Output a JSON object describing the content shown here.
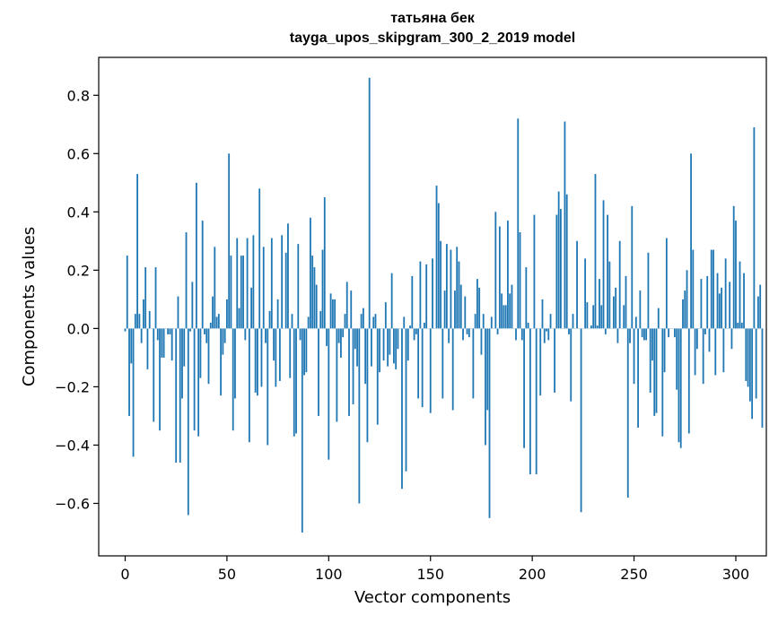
{
  "chart_data": {
    "type": "bar",
    "title": "татьяна бек",
    "subtitle": "tayga_upos_skipgram_300_2_2019 model",
    "xlabel": "Vector components",
    "ylabel": "Components values",
    "xlim": [
      -13,
      315
    ],
    "ylim": [
      -0.78,
      0.93
    ],
    "xticks": [
      0,
      50,
      100,
      150,
      200,
      250,
      300
    ],
    "xtick_labels": [
      "0",
      "50",
      "100",
      "150",
      "200",
      "250",
      "300"
    ],
    "yticks": [
      -0.6,
      -0.4,
      -0.2,
      0.0,
      0.2,
      0.4,
      0.6,
      0.8
    ],
    "ytick_labels": [
      "−0.6",
      "−0.4",
      "−0.2",
      "0.0",
      "0.2",
      "0.4",
      "0.6",
      "0.8"
    ],
    "grid": false,
    "bar_color": "#1f77b4",
    "series": [
      {
        "values": [
          -0.01,
          0.25,
          -0.3,
          -0.12,
          -0.44,
          0.05,
          0.53,
          0.05,
          -0.05,
          0.1,
          0.21,
          -0.14,
          0.06,
          0.0,
          -0.32,
          0.21,
          -0.04,
          -0.35,
          -0.1,
          -0.1,
          0.0,
          -0.02,
          -0.02,
          -0.11,
          0.0,
          -0.46,
          0.11,
          -0.46,
          -0.24,
          -0.13,
          0.33,
          -0.64,
          -0.01,
          0.16,
          -0.35,
          0.5,
          -0.37,
          -0.17,
          0.37,
          -0.02,
          -0.05,
          -0.19,
          0.02,
          0.11,
          0.28,
          0.04,
          0.05,
          -0.23,
          -0.09,
          -0.05,
          0.1,
          0.6,
          0.25,
          -0.35,
          -0.24,
          0.31,
          0.07,
          0.25,
          0.25,
          -0.04,
          0.31,
          -0.39,
          0.14,
          0.32,
          -0.22,
          -0.23,
          0.48,
          -0.2,
          0.28,
          -0.05,
          -0.4,
          0.06,
          0.31,
          -0.11,
          -0.2,
          0.1,
          -0.18,
          0.32,
          0.0,
          0.26,
          0.36,
          -0.17,
          0.05,
          -0.37,
          -0.36,
          0.29,
          -0.04,
          -0.7,
          -0.16,
          -0.15,
          0.04,
          0.38,
          0.25,
          0.21,
          0.15,
          -0.3,
          0.06,
          0.27,
          0.45,
          -0.06,
          -0.45,
          0.12,
          0.1,
          0.1,
          -0.32,
          -0.05,
          -0.1,
          -0.03,
          0.05,
          0.16,
          -0.3,
          0.13,
          -0.26,
          -0.07,
          -0.13,
          -0.6,
          0.05,
          0.07,
          -0.19,
          -0.39,
          0.86,
          -0.13,
          0.04,
          0.05,
          -0.33,
          -0.15,
          0.0,
          -0.11,
          0.09,
          -0.13,
          -0.09,
          0.19,
          -0.12,
          -0.14,
          -0.07,
          0.0,
          -0.55,
          0.04,
          -0.49,
          -0.11,
          0.01,
          0.18,
          -0.04,
          -0.02,
          -0.24,
          0.23,
          -0.27,
          0.02,
          0.22,
          0.0,
          -0.29,
          0.24,
          0.0,
          0.49,
          0.43,
          0.3,
          -0.24,
          0.13,
          0.29,
          -0.05,
          0.27,
          -0.28,
          0.13,
          0.28,
          0.23,
          0.15,
          -0.04,
          0.11,
          -0.02,
          -0.03,
          0.0,
          -0.24,
          0.05,
          0.17,
          0.14,
          -0.09,
          0.05,
          -0.4,
          -0.28,
          -0.65,
          0.04,
          0.0,
          0.4,
          -0.02,
          0.35,
          0.12,
          0.08,
          0.08,
          0.37,
          0.12,
          0.15,
          0.0,
          -0.04,
          0.72,
          0.33,
          -0.04,
          -0.41,
          0.21,
          0.02,
          -0.5,
          0.0,
          0.39,
          -0.5,
          0.0,
          -0.23,
          0.1,
          -0.05,
          -0.01,
          -0.04,
          0.05,
          0.0,
          -0.22,
          0.39,
          0.47,
          0.41,
          0.0,
          0.71,
          0.46,
          -0.02,
          -0.25,
          0.05,
          0.0,
          0.3,
          0.0,
          -0.63,
          0.0,
          0.24,
          0.09,
          0.0,
          0.01,
          0.08,
          0.53,
          0.01,
          0.17,
          0.08,
          0.44,
          -0.02,
          0.39,
          0.23,
          0.0,
          0.11,
          0.14,
          -0.05,
          0.3,
          0.0,
          0.08,
          0.18,
          -0.58,
          -0.05,
          0.42,
          -0.19,
          0.04,
          -0.34,
          0.13,
          -0.03,
          -0.04,
          -0.04,
          0.26,
          -0.22,
          -0.11,
          -0.3,
          -0.29,
          0.07,
          0.0,
          -0.37,
          -0.15,
          0.31,
          -0.03,
          0.0,
          0.0,
          -0.03,
          -0.21,
          -0.39,
          -0.41,
          0.1,
          0.13,
          0.2,
          -0.36,
          0.6,
          0.27,
          -0.16,
          -0.07,
          0.0,
          0.17,
          -0.19,
          -0.02,
          0.18,
          -0.08,
          0.27,
          0.27,
          -0.16,
          0.19,
          0.12,
          0.14,
          -0.15,
          0.24,
          0.0,
          0.16,
          -0.07,
          0.42,
          0.37,
          0.02,
          0.23,
          0.02,
          0.19,
          -0.18,
          -0.2,
          -0.25,
          -0.31,
          0.69,
          -0.24,
          0.11,
          0.15,
          -0.34
        ]
      }
    ]
  }
}
